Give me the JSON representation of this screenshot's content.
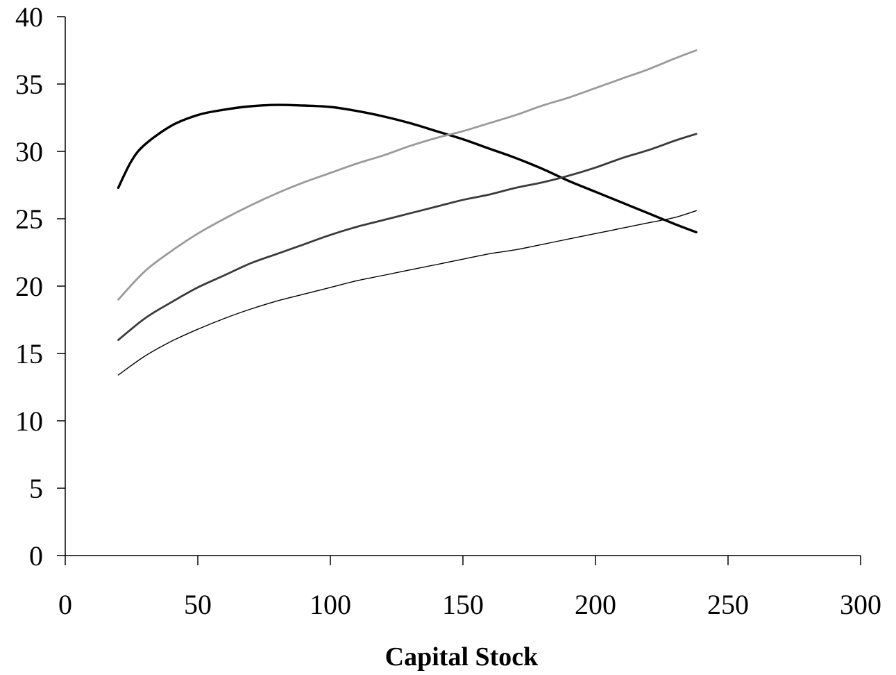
{
  "chart_data": {
    "type": "line",
    "title": "",
    "xlabel": "Capital Stock",
    "ylabel": "",
    "xlim": [
      0,
      300
    ],
    "ylim": [
      0,
      40
    ],
    "xticks": [
      0,
      50,
      100,
      150,
      200,
      250,
      300
    ],
    "yticks": [
      0,
      5,
      10,
      15,
      20,
      25,
      30,
      35,
      40
    ],
    "grid": false,
    "legend": "none",
    "series": [
      {
        "color": "#000000",
        "stroke_style": "thick",
        "x": [
          20,
          25,
          30,
          40,
          50,
          60,
          70,
          80,
          90,
          100,
          110,
          120,
          130,
          140,
          150,
          160,
          170,
          180,
          190,
          200,
          210,
          220,
          230,
          238
        ],
        "values": [
          27.3,
          29.3,
          30.5,
          31.9,
          32.7,
          33.1,
          33.35,
          33.45,
          33.4,
          33.3,
          33.0,
          32.6,
          32.1,
          31.5,
          30.9,
          30.2,
          29.5,
          28.7,
          27.8,
          27.0,
          26.2,
          25.4,
          24.6,
          24.0
        ]
      },
      {
        "color": "#9a9a9a",
        "stroke_style": "medium",
        "x": [
          20,
          30,
          40,
          50,
          60,
          70,
          80,
          90,
          100,
          110,
          120,
          130,
          140,
          150,
          160,
          170,
          180,
          190,
          200,
          210,
          220,
          230,
          238
        ],
        "values": [
          19.0,
          21.1,
          22.6,
          23.9,
          25.0,
          26.0,
          26.9,
          27.7,
          28.4,
          29.1,
          29.7,
          30.4,
          31.0,
          31.5,
          32.1,
          32.7,
          33.4,
          34.0,
          34.7,
          35.4,
          36.1,
          36.9,
          37.5
        ]
      },
      {
        "color": "#3a3a3a",
        "stroke_style": "medium",
        "x": [
          20,
          30,
          40,
          50,
          60,
          70,
          80,
          90,
          100,
          110,
          120,
          130,
          140,
          150,
          160,
          170,
          180,
          190,
          200,
          210,
          220,
          230,
          238
        ],
        "values": [
          16.0,
          17.6,
          18.8,
          19.9,
          20.8,
          21.7,
          22.4,
          23.1,
          23.8,
          24.4,
          24.9,
          25.4,
          25.9,
          26.4,
          26.8,
          27.3,
          27.7,
          28.2,
          28.8,
          29.5,
          30.1,
          30.8,
          31.3
        ]
      },
      {
        "color": "#000000",
        "stroke_style": "thin",
        "x": [
          20,
          30,
          40,
          50,
          60,
          70,
          80,
          90,
          100,
          110,
          120,
          130,
          140,
          150,
          160,
          170,
          180,
          190,
          200,
          210,
          220,
          230,
          238
        ],
        "values": [
          13.4,
          14.8,
          15.9,
          16.8,
          17.6,
          18.3,
          18.9,
          19.4,
          19.9,
          20.4,
          20.8,
          21.2,
          21.6,
          22.0,
          22.4,
          22.7,
          23.1,
          23.5,
          23.9,
          24.3,
          24.7,
          25.1,
          25.6
        ]
      }
    ]
  }
}
